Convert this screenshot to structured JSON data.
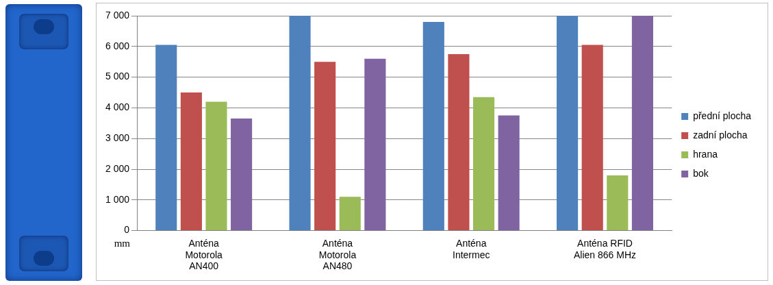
{
  "chart_data": {
    "type": "bar",
    "ylabel": "mm",
    "categories": [
      "Anténa Motorola AN400",
      "Anténa Motorola AN480",
      "Anténa Intermec",
      "Anténa RFID Alien 866 MHz"
    ],
    "series": [
      {
        "name": "přední plocha",
        "color": "#4f81bd",
        "values": [
          6050,
          7000,
          6800,
          7000
        ]
      },
      {
        "name": "zadní plocha",
        "color": "#c0504d",
        "values": [
          4500,
          5500,
          5750,
          6050
        ]
      },
      {
        "name": "hrana",
        "color": "#9bbb59",
        "values": [
          4200,
          1100,
          4350,
          1800
        ]
      },
      {
        "name": "bok",
        "color": "#8064a2",
        "values": [
          3650,
          5600,
          3750,
          7000
        ]
      }
    ],
    "ylim": [
      0,
      7000
    ],
    "yticks": [
      0,
      {
        "value": 1000,
        "label": "1 000"
      },
      {
        "value": 2000,
        "label": "2 000"
      },
      {
        "value": 3000,
        "label": "3 000"
      },
      {
        "value": 4000,
        "label": "4 000"
      },
      {
        "value": 5000,
        "label": "5 000"
      },
      {
        "value": 6000,
        "label": "6 000"
      },
      {
        "value": 7000,
        "label": "7 000"
      }
    ],
    "grid": true,
    "legend": "right"
  }
}
